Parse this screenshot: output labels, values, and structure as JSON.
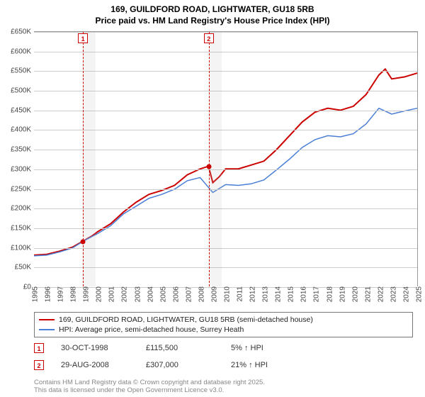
{
  "title": {
    "line1": "169, GUILDFORD ROAD, LIGHTWATER, GU18 5RB",
    "line2": "Price paid vs. HM Land Registry's House Price Index (HPI)"
  },
  "chart": {
    "type": "line",
    "background_color": "#ffffff",
    "grid_color": "#cccccc",
    "ylim": [
      0,
      650000
    ],
    "ytick_step": 50000,
    "ytick_prefix": "£",
    "ytick_suffix": "K",
    "xlim": [
      1995,
      2025
    ],
    "xtick_step": 1,
    "x_rotate": -90,
    "series": [
      {
        "name": "price_paid",
        "label": "169, GUILDFORD ROAD, LIGHTWATER, GU18 5RB (semi-detached house)",
        "color": "#cc0000",
        "line_width": 2,
        "points": [
          [
            1995,
            80000
          ],
          [
            1996,
            82000
          ],
          [
            1997,
            90000
          ],
          [
            1998,
            100000
          ],
          [
            1998.83,
            115500
          ],
          [
            1999.5,
            128000
          ],
          [
            2000,
            140000
          ],
          [
            2001,
            160000
          ],
          [
            2002,
            190000
          ],
          [
            2003,
            215000
          ],
          [
            2004,
            235000
          ],
          [
            2005,
            245000
          ],
          [
            2006,
            258000
          ],
          [
            2007,
            285000
          ],
          [
            2008,
            300000
          ],
          [
            2008.66,
            307000
          ],
          [
            2009,
            265000
          ],
          [
            2009.5,
            280000
          ],
          [
            2010,
            300000
          ],
          [
            2011,
            300000
          ],
          [
            2012,
            310000
          ],
          [
            2013,
            320000
          ],
          [
            2014,
            350000
          ],
          [
            2015,
            385000
          ],
          [
            2016,
            420000
          ],
          [
            2017,
            445000
          ],
          [
            2018,
            455000
          ],
          [
            2019,
            450000
          ],
          [
            2020,
            460000
          ],
          [
            2021,
            490000
          ],
          [
            2022,
            540000
          ],
          [
            2022.5,
            555000
          ],
          [
            2023,
            530000
          ],
          [
            2024,
            535000
          ],
          [
            2025,
            545000
          ]
        ]
      },
      {
        "name": "hpi",
        "label": "HPI: Average price, semi-detached house, Surrey Heath",
        "color": "#4a7fd6",
        "line_width": 1.5,
        "points": [
          [
            1995,
            78000
          ],
          [
            1996,
            80000
          ],
          [
            1997,
            88000
          ],
          [
            1998,
            98000
          ],
          [
            1999,
            118000
          ],
          [
            2000,
            135000
          ],
          [
            2001,
            155000
          ],
          [
            2002,
            185000
          ],
          [
            2003,
            205000
          ],
          [
            2004,
            225000
          ],
          [
            2005,
            235000
          ],
          [
            2006,
            248000
          ],
          [
            2007,
            270000
          ],
          [
            2008,
            278000
          ],
          [
            2009,
            240000
          ],
          [
            2010,
            260000
          ],
          [
            2011,
            258000
          ],
          [
            2012,
            262000
          ],
          [
            2013,
            272000
          ],
          [
            2014,
            298000
          ],
          [
            2015,
            325000
          ],
          [
            2016,
            355000
          ],
          [
            2017,
            375000
          ],
          [
            2018,
            385000
          ],
          [
            2019,
            382000
          ],
          [
            2020,
            390000
          ],
          [
            2021,
            415000
          ],
          [
            2022,
            455000
          ],
          [
            2023,
            440000
          ],
          [
            2024,
            448000
          ],
          [
            2025,
            455000
          ]
        ]
      }
    ],
    "sale_markers": [
      {
        "n": "1",
        "x": 1998.83,
        "y": 115500,
        "band_width": 1,
        "color": "#cc0000"
      },
      {
        "n": "2",
        "x": 2008.66,
        "y": 307000,
        "band_width": 1,
        "color": "#cc0000"
      }
    ]
  },
  "legend": {
    "border_color": "#777777"
  },
  "sales_table": [
    {
      "n": "1",
      "date": "30-OCT-1998",
      "price": "£115,500",
      "hpi": "5% ↑ HPI"
    },
    {
      "n": "2",
      "date": "29-AUG-2008",
      "price": "£307,000",
      "hpi": "21% ↑ HPI"
    }
  ],
  "attribution": {
    "line1": "Contains HM Land Registry data © Crown copyright and database right 2025.",
    "line2": "This data is licensed under the Open Government Licence v3.0."
  },
  "fonts": {
    "title_size": 12,
    "tick_size": 10,
    "legend_size": 10.5,
    "sales_size": 11,
    "attribution_size": 9.5
  }
}
